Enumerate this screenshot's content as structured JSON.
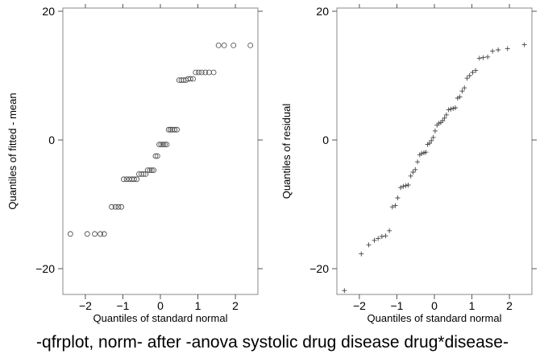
{
  "caption": "-qfrplot, norm- after -anova systolic drug disease drug*disease-",
  "chart_data": [
    {
      "type": "scatter",
      "marker": "circle",
      "xlabel": "Quantiles of standard normal",
      "ylabel": "Quantiles of fitted - mean",
      "xlim": [
        -2.6,
        2.6
      ],
      "ylim": [
        -24,
        20.5
      ],
      "xticks": [
        -2,
        -1,
        0,
        1,
        2
      ],
      "yticks": [
        -20,
        0,
        20
      ],
      "xtick_labels": [
        "−2",
        "−1",
        "0",
        "1",
        "2"
      ],
      "ytick_labels": [
        "−20",
        "0",
        "20"
      ],
      "grid": false,
      "points": [
        [
          -2.4,
          -14.6
        ],
        [
          -1.95,
          -14.6
        ],
        [
          -1.75,
          -14.6
        ],
        [
          -1.6,
          -14.6
        ],
        [
          -1.5,
          -14.6
        ],
        [
          -1.3,
          -10.4
        ],
        [
          -1.2,
          -10.4
        ],
        [
          -1.12,
          -10.4
        ],
        [
          -1.04,
          -10.4
        ],
        [
          -0.98,
          -6.1
        ],
        [
          -0.9,
          -6.1
        ],
        [
          -0.83,
          -6.1
        ],
        [
          -0.76,
          -6.1
        ],
        [
          -0.7,
          -6.1
        ],
        [
          -0.63,
          -6.1
        ],
        [
          -0.57,
          -5.3
        ],
        [
          -0.51,
          -5.3
        ],
        [
          -0.45,
          -5.3
        ],
        [
          -0.39,
          -5.3
        ],
        [
          -0.34,
          -4.7
        ],
        [
          -0.28,
          -4.7
        ],
        [
          -0.23,
          -4.7
        ],
        [
          -0.18,
          -4.7
        ],
        [
          -0.13,
          -2.5
        ],
        [
          -0.08,
          -2.5
        ],
        [
          -0.03,
          -0.7
        ],
        [
          0.02,
          -0.7
        ],
        [
          0.07,
          -0.7
        ],
        [
          0.12,
          -0.7
        ],
        [
          0.17,
          -0.7
        ],
        [
          0.22,
          1.6
        ],
        [
          0.27,
          1.6
        ],
        [
          0.32,
          1.6
        ],
        [
          0.38,
          1.6
        ],
        [
          0.44,
          1.6
        ],
        [
          0.5,
          9.3
        ],
        [
          0.56,
          9.3
        ],
        [
          0.62,
          9.3
        ],
        [
          0.68,
          9.3
        ],
        [
          0.74,
          9.5
        ],
        [
          0.8,
          9.5
        ],
        [
          0.87,
          9.5
        ],
        [
          0.94,
          10.5
        ],
        [
          1.02,
          10.5
        ],
        [
          1.1,
          10.5
        ],
        [
          1.2,
          10.5
        ],
        [
          1.3,
          10.5
        ],
        [
          1.42,
          10.5
        ],
        [
          1.55,
          14.7
        ],
        [
          1.7,
          14.7
        ],
        [
          1.95,
          14.7
        ],
        [
          2.4,
          14.7
        ]
      ]
    },
    {
      "type": "scatter",
      "marker": "plus",
      "xlabel": "Quantiles of standard normal",
      "ylabel": "Quantiles of residual",
      "xlim": [
        -2.6,
        2.6
      ],
      "ylim": [
        -24,
        20.5
      ],
      "xticks": [
        -2,
        -1,
        0,
        1,
        2
      ],
      "yticks": [
        -20,
        0,
        20
      ],
      "xtick_labels": [
        "−2",
        "−1",
        "0",
        "1",
        "2"
      ],
      "ytick_labels": [
        "−20",
        "0",
        "20"
      ],
      "grid": false,
      "points": [
        [
          -2.4,
          -23.4
        ],
        [
          -1.95,
          -17.7
        ],
        [
          -1.75,
          -16.3
        ],
        [
          -1.6,
          -15.6
        ],
        [
          -1.5,
          -15.3
        ],
        [
          -1.4,
          -15.0
        ],
        [
          -1.3,
          -14.9
        ],
        [
          -1.2,
          -14.1
        ],
        [
          -1.12,
          -10.4
        ],
        [
          -1.04,
          -10.2
        ],
        [
          -0.98,
          -9.0
        ],
        [
          -0.9,
          -7.4
        ],
        [
          -0.83,
          -7.2
        ],
        [
          -0.76,
          -7.1
        ],
        [
          -0.7,
          -7.0
        ],
        [
          -0.63,
          -5.6
        ],
        [
          -0.57,
          -5.0
        ],
        [
          -0.51,
          -4.6
        ],
        [
          -0.45,
          -3.4
        ],
        [
          -0.39,
          -2.3
        ],
        [
          -0.34,
          -2.1
        ],
        [
          -0.28,
          -2.0
        ],
        [
          -0.23,
          -1.9
        ],
        [
          -0.18,
          -0.7
        ],
        [
          -0.13,
          -0.5
        ],
        [
          -0.08,
          -0.1
        ],
        [
          -0.03,
          0.4
        ],
        [
          0.02,
          1.4
        ],
        [
          0.07,
          2.3
        ],
        [
          0.12,
          2.6
        ],
        [
          0.17,
          2.7
        ],
        [
          0.22,
          3.0
        ],
        [
          0.27,
          3.4
        ],
        [
          0.32,
          3.9
        ],
        [
          0.38,
          4.7
        ],
        [
          0.44,
          4.8
        ],
        [
          0.5,
          4.9
        ],
        [
          0.56,
          5.0
        ],
        [
          0.62,
          6.5
        ],
        [
          0.68,
          6.7
        ],
        [
          0.74,
          7.6
        ],
        [
          0.8,
          8.1
        ],
        [
          0.87,
          9.6
        ],
        [
          0.94,
          10.0
        ],
        [
          1.02,
          10.5
        ],
        [
          1.1,
          10.8
        ],
        [
          1.2,
          12.7
        ],
        [
          1.3,
          12.8
        ],
        [
          1.42,
          12.9
        ],
        [
          1.55,
          13.8
        ],
        [
          1.7,
          14.0
        ],
        [
          1.95,
          14.2
        ],
        [
          2.4,
          14.8
        ]
      ]
    }
  ]
}
